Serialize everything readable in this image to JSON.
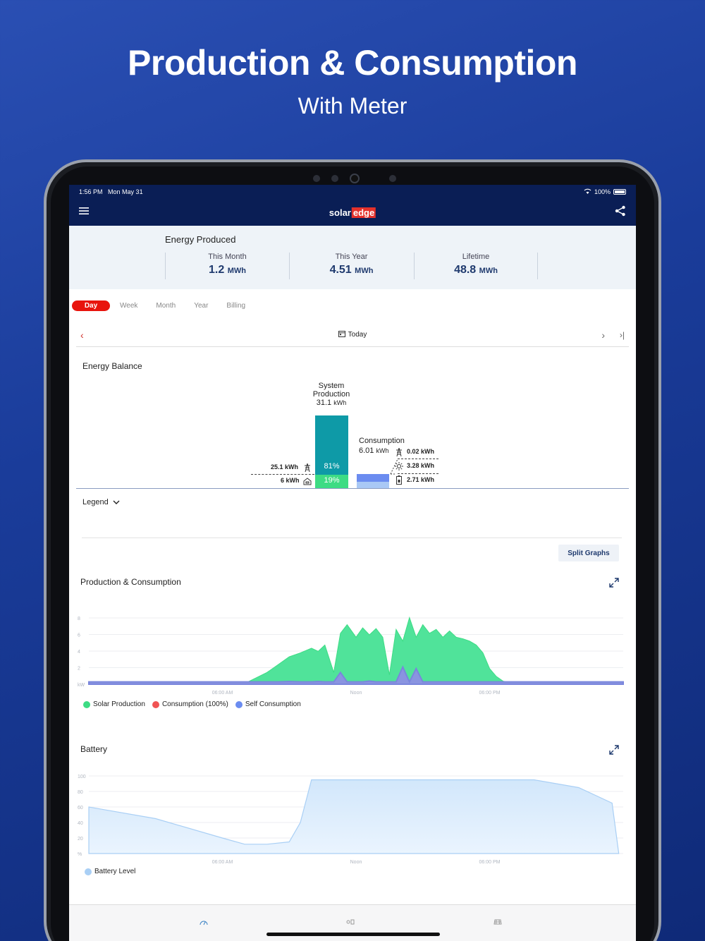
{
  "promo": {
    "title": "Production & Consumption",
    "subtitle": "With Meter"
  },
  "status": {
    "time": "1:56 PM",
    "date": "Mon May 31",
    "battery": "100%"
  },
  "brand": {
    "left": "solar",
    "right": "edge"
  },
  "energy_produced": {
    "title": "Energy Produced",
    "stats": [
      {
        "label": "This Month",
        "value": "1.2",
        "unit": "MWh"
      },
      {
        "label": "This Year",
        "value": "4.51",
        "unit": "MWh"
      },
      {
        "label": "Lifetime",
        "value": "48.8",
        "unit": "MWh"
      }
    ]
  },
  "tabs": [
    "Day",
    "Week",
    "Month",
    "Year",
    "Billing"
  ],
  "date_nav": {
    "label": "Today"
  },
  "energy_balance": {
    "title": "Energy Balance",
    "production_label_1": "System",
    "production_label_2": "Production",
    "production_value": "31.1",
    "production_unit": "kWh",
    "export": "25.1 kWh",
    "export_pct": "81%",
    "self": "6 kWh",
    "self_pct": "19%",
    "consumption_label": "Consumption",
    "consumption_value": "6.01",
    "consumption_unit": "kWh",
    "from_grid": "0.02 kWh",
    "from_solar": "3.28 kWh",
    "from_battery": "2.71 kWh",
    "legend_label": "Legend"
  },
  "split_graphs": "Split Graphs",
  "prod_cons": {
    "title": "Production & Consumption",
    "legend": [
      {
        "name": "Solar Production",
        "color": "#3ddc84"
      },
      {
        "name": "Consumption (100%)",
        "color": "#f05454"
      },
      {
        "name": "Self Consumption",
        "color": "#6b8cf0"
      }
    ]
  },
  "battery": {
    "title": "Battery",
    "legend": "Battery Level"
  },
  "chart_data": [
    {
      "type": "area",
      "title": "Production & Consumption",
      "ylabel": "kW",
      "yticks": [
        "8",
        "6",
        "4",
        "2",
        "kW"
      ],
      "xticks": [
        "06:00 AM",
        "Noon",
        "06:00 PM"
      ],
      "ylim": [
        0,
        9
      ],
      "x": [
        0,
        2,
        4,
        6,
        7,
        8,
        8.5,
        9,
        9.5,
        10,
        10.3,
        10.6,
        11,
        11.3,
        11.6,
        12,
        12.3,
        12.6,
        12.9,
        13.2,
        13.5,
        13.8,
        14.1,
        14.4,
        14.7,
        15,
        15.3,
        15.6,
        15.9,
        16.2,
        16.5,
        16.8,
        17.1,
        17.4,
        17.7,
        18,
        18.3,
        18.6,
        19,
        20,
        22,
        24
      ],
      "series": [
        {
          "name": "Solar Production",
          "values": [
            0,
            0,
            0,
            0,
            0.1,
            1.5,
            2.5,
            3.5,
            4.0,
            4.6,
            4.2,
            5.0,
            1.5,
            6.5,
            7.6,
            6.0,
            7.2,
            6.3,
            7.1,
            6.0,
            1.2,
            7.0,
            5.5,
            8.5,
            6.0,
            7.6,
            6.5,
            7.0,
            6.0,
            6.8,
            6.0,
            5.8,
            5.5,
            5.0,
            4.0,
            2.0,
            1.0,
            0.4,
            0.1,
            0,
            0,
            0
          ]
        },
        {
          "name": "Self Consumption",
          "values": [
            0.3,
            0.3,
            0.3,
            0.3,
            0.3,
            0.3,
            0.3,
            0.35,
            0.3,
            0.3,
            0.35,
            0.3,
            0.3,
            1.5,
            0.3,
            0.3,
            0.3,
            0.4,
            0.3,
            0.3,
            0.3,
            0.3,
            2.2,
            0.3,
            2.0,
            0.3,
            0.3,
            0.3,
            0.3,
            0.3,
            0.3,
            0.3,
            0.3,
            0.3,
            0.3,
            0.3,
            0.3,
            0.3,
            0.3,
            0.3,
            0.3,
            0.3
          ]
        }
      ]
    },
    {
      "type": "area",
      "title": "Battery",
      "ylabel": "%",
      "yticks": [
        "100",
        "80",
        "60",
        "40",
        "20",
        "%"
      ],
      "xticks": [
        "06:00 AM",
        "Noon",
        "06:00 PM"
      ],
      "ylim": [
        0,
        100
      ],
      "x": [
        0,
        3,
        6,
        7,
        8,
        9,
        9.5,
        10,
        12,
        14,
        16,
        18,
        20,
        22,
        23.5,
        23.8
      ],
      "series": [
        {
          "name": "Battery Level",
          "values": [
            60,
            45,
            20,
            12,
            12,
            15,
            40,
            95,
            95,
            95,
            95,
            95,
            95,
            85,
            65,
            0
          ]
        }
      ]
    }
  ]
}
